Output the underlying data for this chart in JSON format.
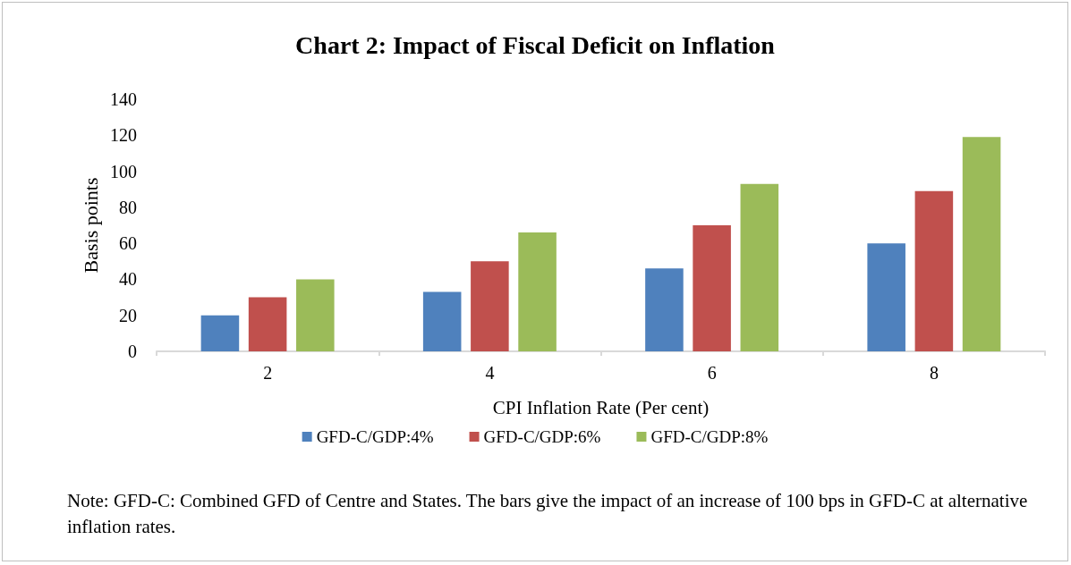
{
  "chart_data": {
    "type": "bar",
    "title": "Chart 2: Impact of Fiscal Deficit on Inflation",
    "xlabel": "CPI Inflation Rate (Per cent)",
    "ylabel": "Basis points",
    "categories": [
      "2",
      "4",
      "6",
      "8"
    ],
    "series": [
      {
        "name": "GFD-C/GDP:4%",
        "color": "#4f81bd",
        "values": [
          20,
          33,
          46,
          60
        ]
      },
      {
        "name": "GFD-C/GDP:6%",
        "color": "#c0504d",
        "values": [
          30,
          50,
          70,
          89
        ]
      },
      {
        "name": "GFD-C/GDP:8%",
        "color": "#9bbb59",
        "values": [
          40,
          66,
          93,
          119
        ]
      }
    ],
    "ylim": [
      0,
      140
    ],
    "yticks": [
      0,
      20,
      40,
      60,
      80,
      100,
      120,
      140
    ],
    "grid": false,
    "legend": "bottom",
    "annotations": [
      "Note: GFD-C: Combined GFD of Centre and States. The bars give the impact of an increase of 100 bps in GFD-C at alternative inflation rates."
    ]
  }
}
